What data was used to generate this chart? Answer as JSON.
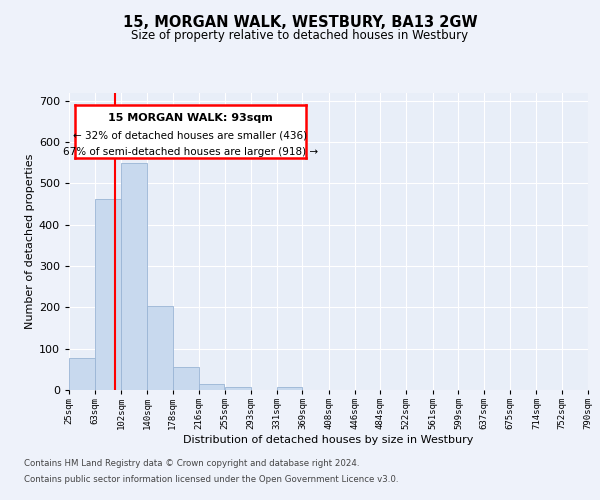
{
  "title": "15, MORGAN WALK, WESTBURY, BA13 2GW",
  "subtitle": "Size of property relative to detached houses in Westbury",
  "xlabel": "Distribution of detached houses by size in Westbury",
  "ylabel": "Number of detached properties",
  "footer_line1": "Contains HM Land Registry data © Crown copyright and database right 2024.",
  "footer_line2": "Contains public sector information licensed under the Open Government Licence v3.0.",
  "annotation_line1": "15 MORGAN WALK: 93sqm",
  "annotation_line2": "← 32% of detached houses are smaller (436)",
  "annotation_line3": "67% of semi-detached houses are larger (918) →",
  "bar_color": "#c8d9ee",
  "bar_edge_color": "#9ab5d5",
  "red_line_x": 93,
  "bins": [
    25,
    63,
    102,
    140,
    178,
    216,
    255,
    293,
    331,
    369,
    408,
    446,
    484,
    522,
    561,
    599,
    637,
    675,
    714,
    752,
    790
  ],
  "counts": [
    78,
    462,
    550,
    203,
    55,
    14,
    8,
    0,
    8,
    0,
    0,
    0,
    0,
    0,
    0,
    0,
    0,
    0,
    0,
    0
  ],
  "ylim": [
    0,
    720
  ],
  "yticks": [
    0,
    100,
    200,
    300,
    400,
    500,
    600,
    700
  ],
  "bg_color": "#eef2fa",
  "plot_bg_color": "#e8eef8",
  "grid_color": "#ffffff"
}
